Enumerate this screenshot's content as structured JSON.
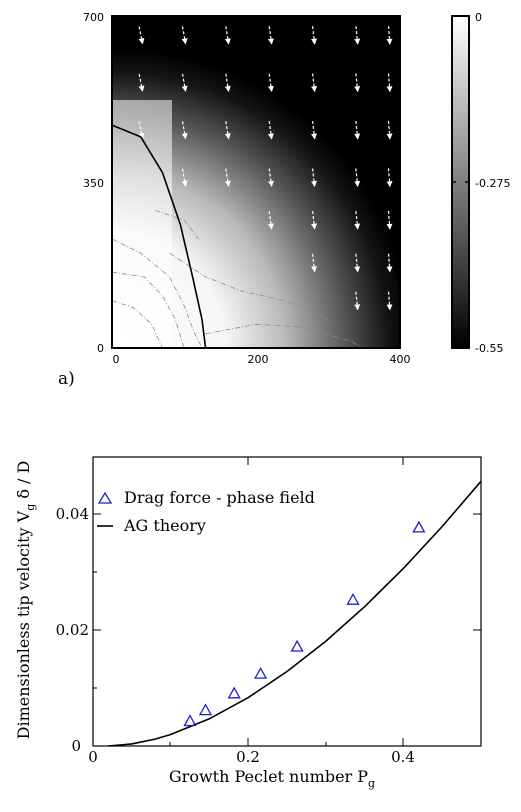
{
  "panel_label_a": "a)",
  "chart_data": [
    {
      "type": "heatmap",
      "xlim": [
        0,
        400
      ],
      "ylim": [
        0,
        700
      ],
      "x_ticks": [
        "0",
        "200",
        "400"
      ],
      "y_ticks": [
        "0",
        "350",
        "700"
      ],
      "colorbar": {
        "range": [
          -0.55,
          0
        ],
        "tick_labels": [
          "0",
          "-0.275",
          "-0.55"
        ],
        "colormap": "grayscale (black = -0.55, white = 0)"
      },
      "grid": false,
      "overlay": "velocity arrows (white, dashed) pointing down and to the right",
      "interface_curve": [
        [
          0,
          470
        ],
        [
          40,
          445
        ],
        [
          70,
          370
        ],
        [
          95,
          260
        ],
        [
          112,
          150
        ],
        [
          125,
          60
        ],
        [
          130,
          0
        ]
      ],
      "contours": "thin gray dash-dot contour lines"
    },
    {
      "type": "scatter",
      "xlim": [
        0,
        0.5
      ],
      "ylim": [
        0,
        0.05
      ],
      "x_ticks": [
        "0",
        "0.2",
        "0.4"
      ],
      "y_ticks": [
        "0",
        "0.02",
        "0.04"
      ],
      "xlabel": "Growth Peclet number P",
      "xlabel_sub": "g",
      "ylabel": "Dimensionless tip velocity V",
      "ylabel_sub": "g",
      "ylabel_tail": " δ / D",
      "legend_position": "top-left",
      "grid": false,
      "series": [
        {
          "name": "Drag force - phase field",
          "marker": "triangle",
          "color": "#1f1fd0",
          "x": [
            0.125,
            0.145,
            0.182,
            0.216,
            0.263,
            0.335,
            0.42
          ],
          "y": [
            0.0043,
            0.0062,
            0.0091,
            0.0125,
            0.0172,
            0.0253,
            0.0378
          ]
        },
        {
          "name": "AG theory",
          "marker": "line",
          "color": "#000000",
          "x": [
            0.02,
            0.05,
            0.08,
            0.1,
            0.15,
            0.2,
            0.25,
            0.3,
            0.35,
            0.4,
            0.45,
            0.5
          ],
          "y": [
            0.0,
            0.00036,
            0.0012,
            0.00199,
            0.00471,
            0.00838,
            0.01289,
            0.01814,
            0.0241,
            0.03072,
            0.03797,
            0.0458
          ]
        }
      ]
    }
  ]
}
